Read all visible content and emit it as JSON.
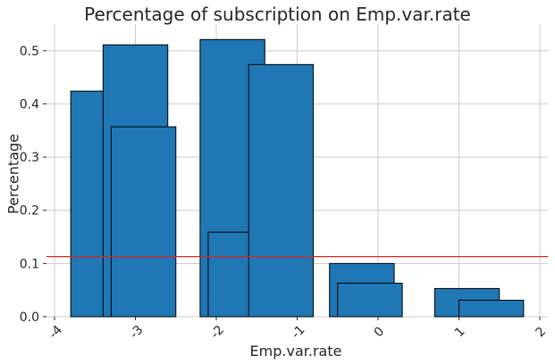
{
  "chart_data": {
    "type": "bar",
    "title": "Percentage of subscription on Emp.var.rate",
    "xlabel": "Emp.var.rate",
    "ylabel": "Percentage",
    "xlim": [
      -4.1,
      2.1
    ],
    "ylim": [
      0,
      0.55
    ],
    "grid": true,
    "xticks": [
      "-4",
      "-3",
      "-2",
      "-1",
      "0",
      "1",
      "2"
    ],
    "yticks": [
      "0.0",
      "0.1",
      "0.2",
      "0.3",
      "0.4",
      "0.5"
    ],
    "bar_color": "#1f77b4",
    "bar_edge_color": "#000000",
    "bar_width": 0.8,
    "bars": [
      {
        "x": -3.4,
        "value": 0.424
      },
      {
        "x": -3.0,
        "value": 0.511
      },
      {
        "x": -2.9,
        "value": 0.357
      },
      {
        "x": -1.8,
        "value": 0.521
      },
      {
        "x": -1.7,
        "value": 0.159
      },
      {
        "x": -1.2,
        "value": 0.474
      },
      {
        "x": -0.2,
        "value": 0.1
      },
      {
        "x": -0.1,
        "value": 0.063
      },
      {
        "x": 1.1,
        "value": 0.053
      },
      {
        "x": 1.4,
        "value": 0.031
      }
    ],
    "reference_line": {
      "value": 0.113,
      "color": "#d62728"
    }
  }
}
